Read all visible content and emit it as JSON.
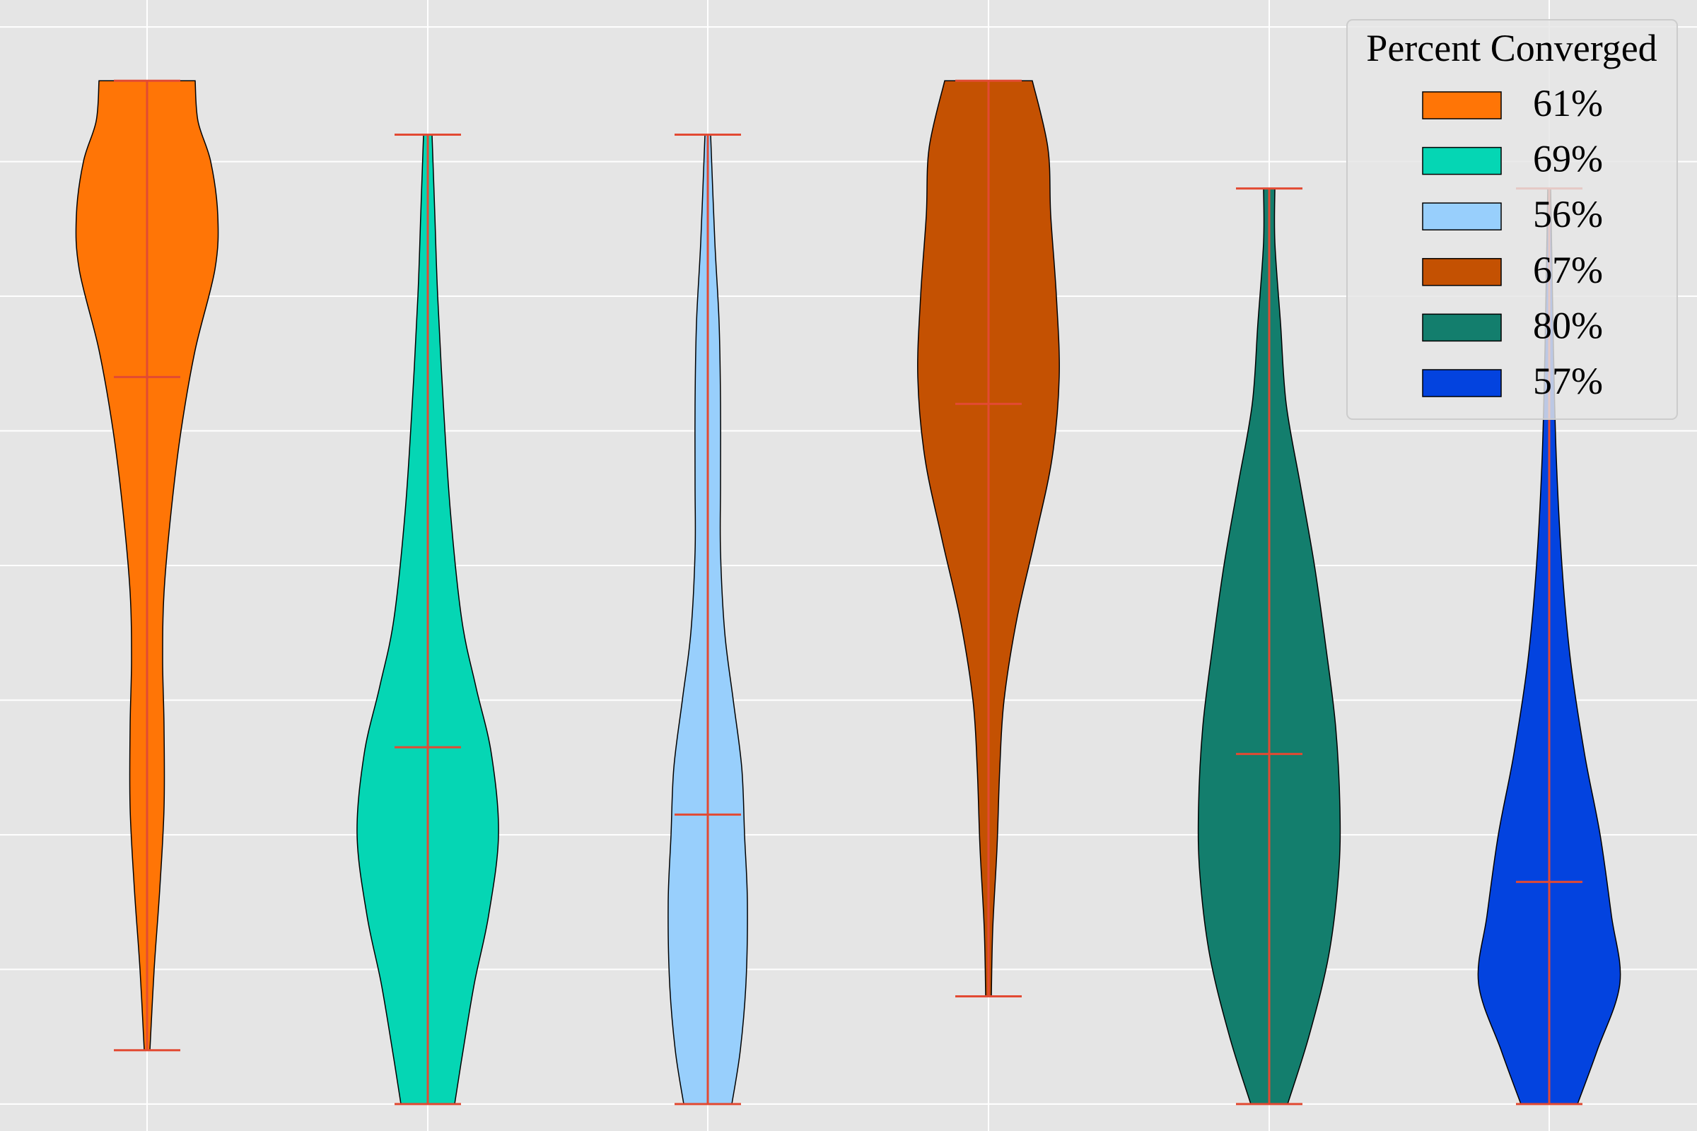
{
  "chart_data": {
    "type": "violin",
    "title": "",
    "xlabel": "",
    "ylabel": "",
    "ylim": [
      -0.2,
      8.2
    ],
    "grid": true,
    "legend": {
      "title": "Percent Converged",
      "position": "top-right"
    },
    "series": [
      {
        "name": "61%",
        "color": "#FF7506",
        "min": 0.4,
        "max": 7.6,
        "median": 5.4,
        "profile": [
          [
            0.4,
            0.02
          ],
          [
            1.0,
            0.05
          ],
          [
            1.6,
            0.09
          ],
          [
            2.2,
            0.12
          ],
          [
            2.8,
            0.12
          ],
          [
            3.3,
            0.11
          ],
          [
            3.8,
            0.12
          ],
          [
            4.4,
            0.17
          ],
          [
            5.0,
            0.24
          ],
          [
            5.6,
            0.34
          ],
          [
            6.2,
            0.48
          ],
          [
            6.6,
            0.5
          ],
          [
            7.0,
            0.45
          ],
          [
            7.3,
            0.36
          ],
          [
            7.6,
            0.34
          ]
        ]
      },
      {
        "name": "69%",
        "color": "#05D6B4",
        "min": 0.0,
        "max": 7.2,
        "median": 2.65,
        "profile": [
          [
            0.0,
            0.19
          ],
          [
            0.4,
            0.25
          ],
          [
            0.9,
            0.33
          ],
          [
            1.4,
            0.43
          ],
          [
            2.0,
            0.5
          ],
          [
            2.6,
            0.45
          ],
          [
            3.1,
            0.34
          ],
          [
            3.6,
            0.24
          ],
          [
            4.4,
            0.16
          ],
          [
            5.2,
            0.11
          ],
          [
            6.0,
            0.07
          ],
          [
            6.6,
            0.05
          ],
          [
            7.2,
            0.03
          ]
        ]
      },
      {
        "name": "56%",
        "color": "#98CFFC",
        "min": 0.0,
        "max": 7.2,
        "median": 2.15,
        "profile": [
          [
            0.0,
            0.17
          ],
          [
            0.4,
            0.23
          ],
          [
            0.9,
            0.27
          ],
          [
            1.5,
            0.28
          ],
          [
            2.0,
            0.26
          ],
          [
            2.5,
            0.24
          ],
          [
            3.0,
            0.18
          ],
          [
            3.5,
            0.12
          ],
          [
            4.1,
            0.09
          ],
          [
            4.6,
            0.09
          ],
          [
            5.2,
            0.09
          ],
          [
            5.8,
            0.08
          ],
          [
            6.4,
            0.05
          ],
          [
            7.2,
            0.02
          ]
        ]
      },
      {
        "name": "67%",
        "color": "#C45102",
        "min": 0.8,
        "max": 7.6,
        "median": 5.2,
        "profile": [
          [
            0.8,
            0.02
          ],
          [
            1.3,
            0.03
          ],
          [
            1.9,
            0.06
          ],
          [
            2.5,
            0.08
          ],
          [
            3.0,
            0.11
          ],
          [
            3.6,
            0.2
          ],
          [
            4.2,
            0.33
          ],
          [
            4.8,
            0.45
          ],
          [
            5.4,
            0.5
          ],
          [
            6.0,
            0.48
          ],
          [
            6.6,
            0.44
          ],
          [
            7.1,
            0.42
          ],
          [
            7.6,
            0.31
          ]
        ]
      },
      {
        "name": "80%",
        "color": "#137E6D",
        "min": 0.0,
        "max": 6.8,
        "median": 2.6,
        "profile": [
          [
            0.0,
            0.13
          ],
          [
            0.5,
            0.28
          ],
          [
            1.1,
            0.42
          ],
          [
            1.7,
            0.49
          ],
          [
            2.2,
            0.5
          ],
          [
            2.8,
            0.47
          ],
          [
            3.4,
            0.4
          ],
          [
            4.0,
            0.32
          ],
          [
            4.6,
            0.22
          ],
          [
            5.2,
            0.12
          ],
          [
            5.8,
            0.08
          ],
          [
            6.4,
            0.04
          ],
          [
            6.8,
            0.04
          ]
        ]
      },
      {
        "name": "57%",
        "color": "#0343DF",
        "min": 0.0,
        "max": 6.8,
        "median": 1.65,
        "profile": [
          [
            0.0,
            0.2
          ],
          [
            0.4,
            0.34
          ],
          [
            0.9,
            0.5
          ],
          [
            1.4,
            0.44
          ],
          [
            2.0,
            0.36
          ],
          [
            2.6,
            0.25
          ],
          [
            3.3,
            0.15
          ],
          [
            4.0,
            0.09
          ],
          [
            4.8,
            0.05
          ],
          [
            5.6,
            0.03
          ],
          [
            6.2,
            0.02
          ],
          [
            6.8,
            0.01
          ]
        ]
      }
    ]
  }
}
